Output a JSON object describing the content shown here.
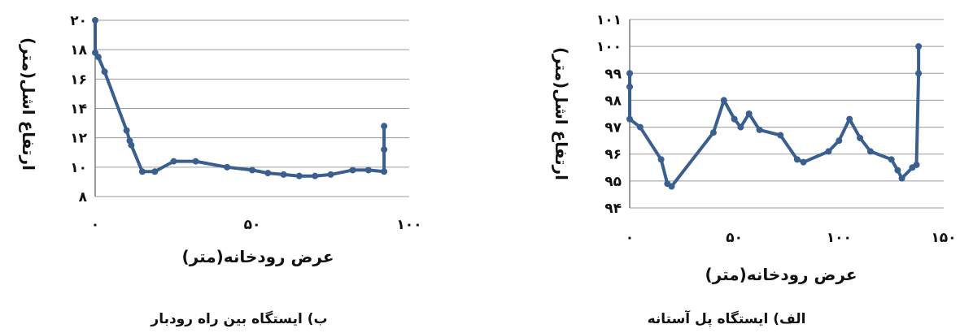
{
  "chart_data": [
    {
      "type": "line",
      "caption": "ب) ایستگاه بین راه رودبار",
      "xlabel": "عرض رودخانه(متر)",
      "ylabel": "ارتفاع اشل(متر)",
      "xlim": [
        0,
        100
      ],
      "ylim": [
        8,
        20
      ],
      "xticks": [
        0,
        50,
        100
      ],
      "xtick_labels": [
        "۰",
        "۵۰",
        "۱۰۰"
      ],
      "yticks": [
        8,
        10,
        12,
        14,
        16,
        18,
        20
      ],
      "ytick_labels": [
        "۸",
        "۱۰",
        "۱۲",
        "۱۴",
        "۱۶",
        "۱۸",
        "۲۰"
      ],
      "grid": true,
      "series": [
        {
          "x": [
            0,
            0,
            1,
            3,
            10,
            11,
            11.5,
            15,
            19,
            25,
            32,
            42,
            50,
            55,
            60,
            65,
            70,
            75,
            82,
            87,
            92,
            92,
            92
          ],
          "y": [
            20,
            17.8,
            17.5,
            16.5,
            12.5,
            11.8,
            11.5,
            9.7,
            9.7,
            10.4,
            10.4,
            10,
            9.8,
            9.6,
            9.5,
            9.4,
            9.4,
            9.5,
            9.8,
            9.8,
            9.7,
            11.2,
            12.8
          ]
        }
      ]
    },
    {
      "type": "line",
      "caption": "الف) ایستگاه پل آستانه",
      "xlabel": "عرض رودخانه(متر)",
      "ylabel": "ارتفاع اشل(متر)",
      "xlim": [
        0,
        150
      ],
      "ylim": [
        94,
        101
      ],
      "xticks": [
        0,
        50,
        100,
        150
      ],
      "xtick_labels": [
        "۰",
        "۵۰",
        "۱۰۰",
        "۱۵۰"
      ],
      "yticks": [
        94,
        95,
        96,
        97,
        98,
        99,
        100,
        101
      ],
      "ytick_labels": [
        "۹۴",
        "۹۵",
        "۹۶",
        "۹۷",
        "۹۸",
        "۹۹",
        "۱۰۰",
        "۱۰۱"
      ],
      "grid": true,
      "series": [
        {
          "x": [
            0,
            0,
            0,
            5,
            15,
            18,
            20,
            40,
            45,
            50,
            53,
            57,
            62,
            72,
            80,
            83,
            95,
            100,
            105,
            110,
            115,
            125,
            128,
            130,
            135,
            137,
            138,
            138
          ],
          "y": [
            99,
            98.5,
            97.3,
            97,
            95.8,
            94.9,
            94.8,
            96.8,
            98,
            97.3,
            97,
            97.5,
            96.9,
            96.7,
            95.8,
            95.7,
            96.1,
            96.5,
            97.3,
            96.6,
            96.1,
            95.8,
            95.4,
            95.1,
            95.5,
            95.6,
            99,
            100
          ]
        }
      ]
    }
  ]
}
